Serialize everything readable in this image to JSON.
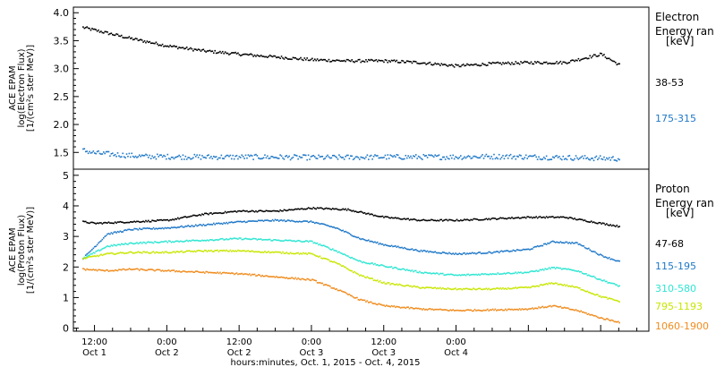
{
  "chart_data": [
    {
      "type": "scatter",
      "ylabel_lines": [
        "ACE EPAM",
        "log(Electron Flux)",
        "[1/(cm²s ster MeV)]"
      ],
      "ylim": [
        1.2,
        4.1
      ],
      "yticks": [
        1.5,
        2.0,
        2.5,
        3.0,
        3.5,
        4.0
      ],
      "yticklabels": [
        "1.5",
        "2.0",
        "2.5",
        "3.0",
        "3.5",
        "4.0"
      ],
      "legend_title_lines": [
        "Electron",
        "Energy ran",
        "[keV]"
      ],
      "series": [
        {
          "name": "38-53",
          "color": "#000000",
          "t": [
            10,
            12,
            18,
            24,
            30,
            36,
            42,
            48,
            54,
            60,
            66,
            72,
            78,
            84,
            90,
            96,
            99
          ],
          "values": [
            3.75,
            3.7,
            3.55,
            3.42,
            3.33,
            3.27,
            3.22,
            3.17,
            3.15,
            3.15,
            3.12,
            3.06,
            3.1,
            3.12,
            3.12,
            3.27,
            3.08
          ]
        },
        {
          "name": "175-315",
          "color": "#1f78c8",
          "t": [
            10,
            12,
            20,
            30,
            40,
            50,
            60,
            70,
            80,
            90,
            99
          ],
          "values": [
            1.55,
            1.5,
            1.44,
            1.43,
            1.43,
            1.42,
            1.43,
            1.43,
            1.44,
            1.42,
            1.4
          ]
        }
      ]
    },
    {
      "type": "scatter",
      "ylabel_lines": [
        "ACE EPAM",
        "log(Proton Flux)",
        "[1/(cm²s ster MeV)]"
      ],
      "ylim": [
        -0.1,
        5.2
      ],
      "yticks": [
        0,
        1,
        2,
        3,
        4,
        5
      ],
      "yticklabels": [
        "0",
        "1",
        "2",
        "3",
        "4",
        "5"
      ],
      "legend_title_lines": [
        "Proton",
        "Energy ran",
        "[keV]"
      ],
      "series": [
        {
          "name": "47-68",
          "color": "#000000",
          "t": [
            10,
            12,
            18,
            24,
            30,
            36,
            42,
            48,
            54,
            60,
            66,
            72,
            78,
            84,
            90,
            96,
            99
          ],
          "values": [
            3.5,
            3.45,
            3.5,
            3.55,
            3.75,
            3.85,
            3.85,
            3.95,
            3.9,
            3.65,
            3.55,
            3.55,
            3.6,
            3.65,
            3.65,
            3.45,
            3.35
          ]
        },
        {
          "name": "115-195",
          "color": "#1f78c8",
          "t": [
            10,
            14,
            18,
            24,
            30,
            36,
            42,
            48,
            52,
            56,
            60,
            66,
            72,
            78,
            84,
            88,
            92,
            96,
            99
          ],
          "values": [
            2.3,
            3.1,
            3.25,
            3.3,
            3.4,
            3.5,
            3.55,
            3.5,
            3.3,
            2.95,
            2.75,
            2.55,
            2.45,
            2.5,
            2.6,
            2.85,
            2.8,
            2.4,
            2.2
          ]
        },
        {
          "name": "310-580",
          "color": "#2ee6d2",
          "t": [
            10,
            14,
            18,
            24,
            30,
            36,
            42,
            48,
            52,
            56,
            60,
            66,
            72,
            78,
            84,
            88,
            92,
            96,
            99
          ],
          "values": [
            2.3,
            2.7,
            2.8,
            2.85,
            2.9,
            2.95,
            2.9,
            2.85,
            2.55,
            2.2,
            2.05,
            1.85,
            1.75,
            1.8,
            1.85,
            2.0,
            1.9,
            1.6,
            1.4
          ]
        },
        {
          "name": "795-1193",
          "color": "#c8e600",
          "t": [
            10,
            14,
            18,
            24,
            30,
            36,
            42,
            48,
            52,
            56,
            60,
            66,
            72,
            78,
            84,
            88,
            92,
            96,
            99
          ],
          "values": [
            2.3,
            2.45,
            2.5,
            2.5,
            2.55,
            2.55,
            2.5,
            2.45,
            2.15,
            1.75,
            1.5,
            1.35,
            1.3,
            1.3,
            1.35,
            1.5,
            1.35,
            1.05,
            0.9
          ]
        },
        {
          "name": "1060-1900",
          "color": "#f08c1e",
          "t": [
            10,
            14,
            18,
            24,
            30,
            36,
            42,
            48,
            52,
            56,
            60,
            66,
            72,
            78,
            84,
            88,
            92,
            96,
            99
          ],
          "values": [
            1.95,
            1.9,
            1.95,
            1.9,
            1.85,
            1.8,
            1.7,
            1.6,
            1.3,
            0.95,
            0.75,
            0.65,
            0.6,
            0.62,
            0.65,
            0.75,
            0.6,
            0.35,
            0.22
          ]
        }
      ]
    }
  ],
  "x_axis": {
    "xlim": [
      8.5,
      104
    ],
    "ticks": [
      {
        "t": 12,
        "time": "12:00",
        "day": "Oct 1"
      },
      {
        "t": 24,
        "time": "0:00",
        "day": "Oct 2"
      },
      {
        "t": 36,
        "time": "12:00",
        "day": "Oct 2"
      },
      {
        "t": 48,
        "time": "0:00",
        "day": "Oct 3"
      },
      {
        "t": 60,
        "time": "12:00",
        "day": "Oct 3"
      },
      {
        "t": 72,
        "time": "0:00",
        "day": "Oct 4"
      }
    ],
    "xlabel": "hours:minutes, Oct.  1, 2015 - Oct.  4, 2015"
  }
}
